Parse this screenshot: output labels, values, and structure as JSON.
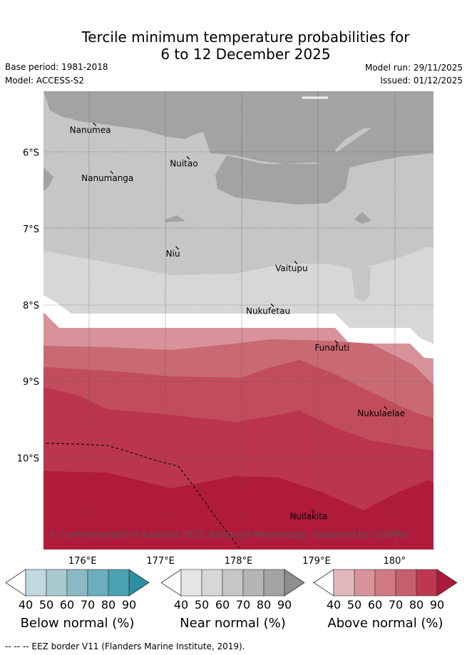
{
  "title": {
    "line1": "Tercile minimum temperature probabilities for",
    "line2": "6 to 12 December 2025"
  },
  "meta": {
    "base_period": "Base period: 1981-2018",
    "model": "Model: ACCESS-S2",
    "model_run": "Model run: 29/11/2025",
    "issued": "Issued: 01/12/2025"
  },
  "map": {
    "extent": {
      "lon_min": 175.5,
      "lon_max": 180.5,
      "lat_min": -11.2,
      "lat_max": -5.2
    },
    "lon_ticks": [
      {
        "value": 176,
        "label": "176°E"
      },
      {
        "value": 177,
        "label": "177°E"
      },
      {
        "value": 178,
        "label": "178°E"
      },
      {
        "value": 179,
        "label": "179°E"
      },
      {
        "value": 180,
        "label": "180°"
      }
    ],
    "lat_ticks": [
      {
        "value": -6,
        "label": "6°S"
      },
      {
        "value": -7,
        "label": "7°S"
      },
      {
        "value": -8,
        "label": "8°S"
      },
      {
        "value": -9,
        "label": "9°S"
      },
      {
        "value": -10,
        "label": "10°S"
      }
    ],
    "islands": [
      {
        "name": "Nanumea",
        "lon": 176.1,
        "lat": -5.67
      },
      {
        "name": "Nuitao",
        "lon": 177.3,
        "lat": -6.11
      },
      {
        "name": "Nanumanga",
        "lon": 176.32,
        "lat": -6.3
      },
      {
        "name": "Niu",
        "lon": 177.16,
        "lat": -7.29
      },
      {
        "name": "Vaitupu",
        "lon": 178.68,
        "lat": -7.48
      },
      {
        "name": "Nukufetau",
        "lon": 178.38,
        "lat": -8.04
      },
      {
        "name": "Funafuti",
        "lon": 179.2,
        "lat": -8.52
      },
      {
        "name": "Nukulaelae",
        "lon": 179.83,
        "lat": -9.38
      },
      {
        "name": "Nuilakita",
        "lon": 178.9,
        "lat": -10.73
      }
    ],
    "copyright": "© Commonwealth of Australia 2025, Bureau of Meteorology, supported by COSPPac"
  },
  "colorbars": [
    {
      "title": "Below normal (%)",
      "ticks": [
        "40",
        "50",
        "60",
        "70",
        "80",
        "90"
      ],
      "colors": [
        "#c0d9e0",
        "#a8cace",
        "#8ab9c6",
        "#6caebe",
        "#4aa2b2",
        "#2e8ea2"
      ]
    },
    {
      "title": "Near normal (%)",
      "ticks": [
        "40",
        "50",
        "60",
        "70",
        "80",
        "90"
      ],
      "colors": [
        "#e5e5e5",
        "#d7d7d7",
        "#c6c6c6",
        "#b5b5b5",
        "#a3a3a3",
        "#8e8e8e"
      ]
    },
    {
      "title": "Above normal (%)",
      "ticks": [
        "40",
        "50",
        "60",
        "70",
        "80",
        "90"
      ],
      "colors": [
        "#e2b8bd",
        "#d8939a",
        "#d07b83",
        "#c65f6b",
        "#bc3850",
        "#ae1a3b"
      ]
    }
  ],
  "footer": "-- -- -- EEZ border V11 (Flanders Marine Institute, 2019)."
}
